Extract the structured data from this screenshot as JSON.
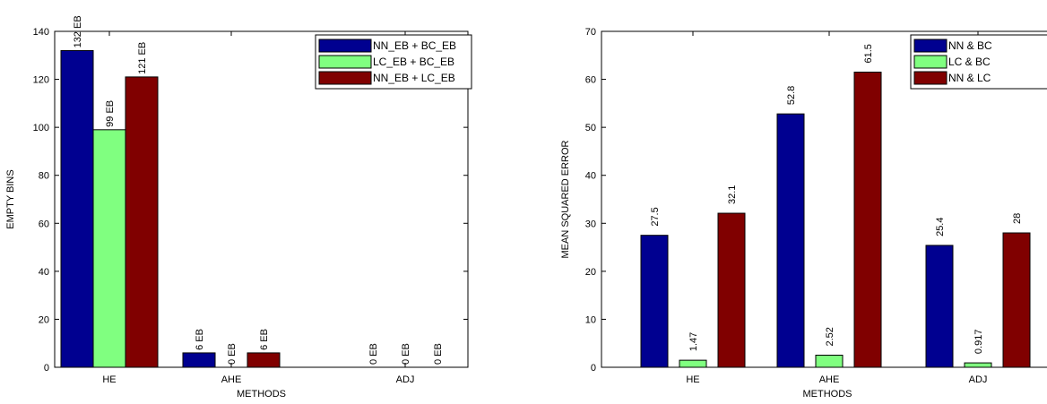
{
  "chart_data": [
    {
      "type": "bar",
      "categories": [
        "HE",
        "AHE",
        "ADJ"
      ],
      "series": [
        {
          "name": "NN_EB + BC_EB",
          "values": [
            132,
            6,
            0
          ],
          "labels": [
            "132 EB",
            "6 EB",
            "0 EB"
          ],
          "color": "#000090"
        },
        {
          "name": "LC_EB + BC_EB",
          "values": [
            99,
            0,
            0
          ],
          "labels": [
            "99 EB",
            "0 EB",
            "0 EB"
          ],
          "color": "#80ff80"
        },
        {
          "name": "NN_EB + LC_EB",
          "values": [
            121,
            6,
            0
          ],
          "labels": [
            "121 EB",
            "6 EB",
            "0 EB"
          ],
          "color": "#800000"
        }
      ],
      "xlabel": "METHODS",
      "ylabel": "EMPTY BINS",
      "ylim": [
        0,
        140
      ],
      "yticks": [
        "0",
        "20",
        "40",
        "60",
        "80",
        "100",
        "120",
        "140"
      ],
      "grid": false,
      "legend": "top-right"
    },
    {
      "type": "bar",
      "categories": [
        "HE",
        "AHE",
        "ADJ"
      ],
      "series": [
        {
          "name": "NN & BC",
          "values": [
            27.5,
            52.8,
            25.4
          ],
          "labels": [
            "27.5",
            "52.8",
            "25.4"
          ],
          "color": "#000090"
        },
        {
          "name": "LC & BC",
          "values": [
            1.47,
            2.52,
            0.917
          ],
          "labels": [
            "1.47",
            "2.52",
            "0.917"
          ],
          "color": "#80ff80"
        },
        {
          "name": "NN & LC",
          "values": [
            32.1,
            61.5,
            28
          ],
          "labels": [
            "32.1",
            "61.5",
            "28"
          ],
          "color": "#800000"
        }
      ],
      "xlabel": "METHODS",
      "ylabel": "MEAN SQUARED ERROR",
      "ylim": [
        0,
        70
      ],
      "yticks": [
        "0",
        "10",
        "20",
        "30",
        "40",
        "50",
        "60",
        "70"
      ],
      "grid": false,
      "legend": "top-right"
    }
  ]
}
